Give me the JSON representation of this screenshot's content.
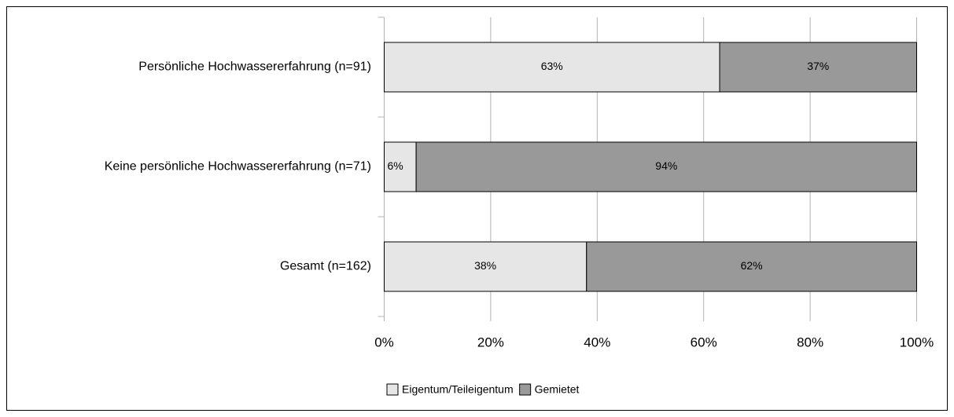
{
  "chart_data": {
    "type": "stacked-bar-horizontal",
    "categories": [
      "Persönliche Hochwassererfahrung (n=91)",
      "Keine persönliche Hochwassererfahrung (n=71)",
      "Gesamt (n=162)"
    ],
    "series": [
      {
        "name": "Eigentum/Teileigentum",
        "color": "#e6e6e6",
        "values": [
          63,
          6,
          38
        ],
        "value_labels": [
          "63%",
          "6%",
          "38%"
        ]
      },
      {
        "name": "Gemietet",
        "color": "#999999",
        "values": [
          37,
          94,
          62
        ],
        "value_labels": [
          "37%",
          "94%",
          "62%"
        ]
      }
    ],
    "xlim": [
      0,
      100
    ],
    "xticks": [
      {
        "value": 0,
        "label": "0%"
      },
      {
        "value": 20,
        "label": "20%"
      },
      {
        "value": 40,
        "label": "40%"
      },
      {
        "value": 60,
        "label": "60%"
      },
      {
        "value": 80,
        "label": "80%"
      },
      {
        "value": 100,
        "label": "100%"
      }
    ],
    "grid": true,
    "legend": "bottom"
  }
}
